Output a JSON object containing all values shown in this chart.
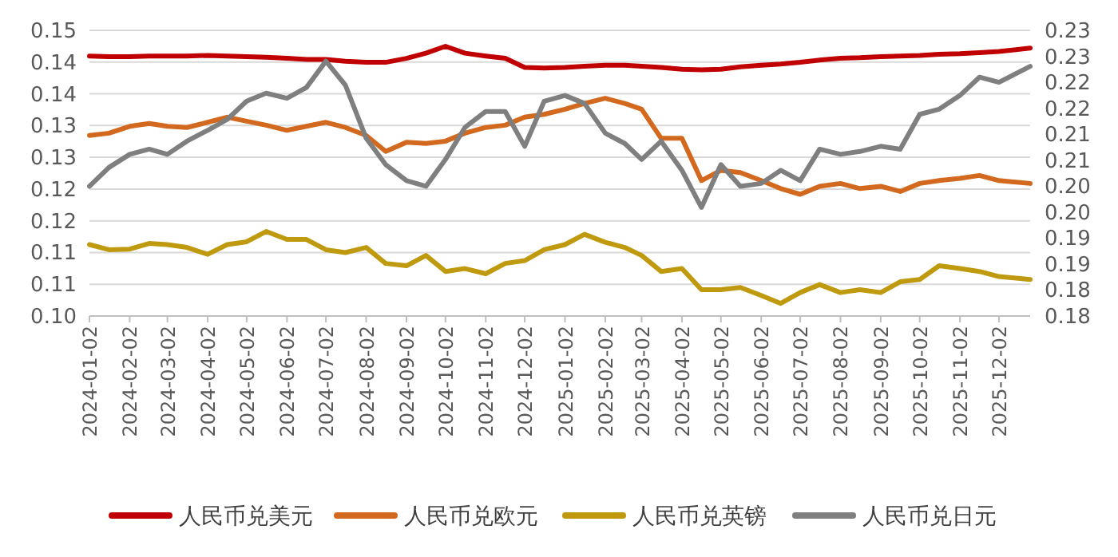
{
  "chart_data": {
    "type": "line",
    "x": [
      "2024-01-02",
      "2024-01-17",
      "2024-02-02",
      "2024-02-17",
      "2024-03-02",
      "2024-03-17",
      "2024-04-02",
      "2024-04-17",
      "2024-05-02",
      "2024-05-17",
      "2024-06-02",
      "2024-06-17",
      "2024-07-02",
      "2024-07-17",
      "2024-08-02",
      "2024-08-17",
      "2024-09-02",
      "2024-09-17",
      "2024-10-02",
      "2024-10-17",
      "2024-11-02",
      "2024-11-17",
      "2024-12-02",
      "2024-12-17",
      "2025-01-02",
      "2025-01-17",
      "2025-02-02",
      "2025-02-17",
      "2025-03-02",
      "2025-03-17",
      "2025-04-02",
      "2025-04-17",
      "2025-05-02",
      "2025-05-17",
      "2025-06-02",
      "2025-06-17",
      "2025-07-02",
      "2025-07-17",
      "2025-08-02",
      "2025-08-17",
      "2025-09-02",
      "2025-09-17",
      "2025-10-02",
      "2025-10-17",
      "2025-11-02",
      "2025-11-17",
      "2025-12-02",
      "2025-12-26"
    ],
    "series": [
      {
        "name": "人民币兑美元",
        "color": "#c00000",
        "values": [
          0.1455,
          0.1454,
          0.1454,
          0.1455,
          0.1455,
          0.1455,
          0.1456,
          0.1455,
          0.1454,
          0.1453,
          0.1451,
          0.1449,
          0.1449,
          0.1446,
          0.1444,
          0.1444,
          0.1451,
          0.146,
          0.1472,
          0.146,
          0.1455,
          0.1451,
          0.1435,
          0.1434,
          0.1435,
          0.1437,
          0.1439,
          0.1439,
          0.1437,
          0.1435,
          0.1432,
          0.1431,
          0.1432,
          0.1436,
          0.1439,
          0.1441,
          0.1444,
          0.1448,
          0.1451,
          0.1452,
          0.1454,
          0.1455,
          0.1456,
          0.1458,
          0.1459,
          0.1461,
          0.1463,
          0.1469
        ]
      },
      {
        "name": "人民币兑欧元",
        "color": "#d2691e",
        "values": [
          0.1316,
          0.132,
          0.1332,
          0.1337,
          0.1332,
          0.133,
          0.1339,
          0.1348,
          0.1341,
          0.1334,
          0.1325,
          0.1332,
          0.1339,
          0.133,
          0.1316,
          0.1288,
          0.1304,
          0.1302,
          0.1306,
          0.132,
          0.133,
          0.1334,
          0.1348,
          0.1353,
          0.1362,
          0.1372,
          0.1381,
          0.1372,
          0.1362,
          0.1311,
          0.1311,
          0.1237,
          0.1255,
          0.1251,
          0.1237,
          0.1223,
          0.1213,
          0.1227,
          0.1232,
          0.1223,
          0.1227,
          0.1218,
          0.1232,
          0.1237,
          0.1241,
          0.1246,
          0.1237,
          0.1232
        ]
      },
      {
        "name": "人民币兑英镑",
        "color": "#c09a0e",
        "values": [
          0.1125,
          0.1116,
          0.1117,
          0.1127,
          0.1125,
          0.112,
          0.1108,
          0.1125,
          0.113,
          0.1148,
          0.1134,
          0.1134,
          0.1116,
          0.1111,
          0.112,
          0.1092,
          0.1088,
          0.1106,
          0.1078,
          0.1083,
          0.1074,
          0.1092,
          0.1097,
          0.1116,
          0.1125,
          0.1143,
          0.1129,
          0.112,
          0.1106,
          0.1078,
          0.1083,
          0.1046,
          0.1046,
          0.105,
          0.1036,
          0.1022,
          0.1041,
          0.1055,
          0.1041,
          0.1046,
          0.1041,
          0.106,
          0.1064,
          0.1088,
          0.1083,
          0.1078,
          0.1069,
          0.1064
        ]
      },
      {
        "name": "人民币兑日元",
        "color": "#7f7f7f",
        "axis": "y2",
        "values": [
          0.2027,
          0.206,
          0.2083,
          0.2092,
          0.2083,
          0.2106,
          0.2125,
          0.2144,
          0.2176,
          0.219,
          0.2181,
          0.22,
          0.2246,
          0.2204,
          0.2111,
          0.2065,
          0.2037,
          0.2027,
          0.2074,
          0.213,
          0.2158,
          0.2158,
          0.2097,
          0.2176,
          0.2186,
          0.2172,
          0.212,
          0.2102,
          0.2074,
          0.2106,
          0.2055,
          0.199,
          0.2065,
          0.2027,
          0.2032,
          0.2055,
          0.2037,
          0.2092,
          0.2083,
          0.2088,
          0.2097,
          0.2092,
          0.2153,
          0.2162,
          0.2186,
          0.2218,
          0.2209,
          0.2237
        ]
      }
    ],
    "xlim": [
      "2024-01-02",
      "2025-12-26"
    ],
    "xticks": [
      "2024-01-02",
      "2024-02-02",
      "2024-03-02",
      "2024-04-02",
      "2024-05-02",
      "2024-06-02",
      "2024-07-02",
      "2024-08-02",
      "2024-09-02",
      "2024-10-02",
      "2024-11-02",
      "2024-12-02",
      "2025-01-02",
      "2025-02-02",
      "2025-03-02",
      "2025-04-02",
      "2025-05-02",
      "2025-06-02",
      "2025-07-02",
      "2025-08-02",
      "2025-09-02",
      "2025-10-02",
      "2025-11-02",
      "2025-12-02"
    ],
    "ylim": [
      0.1,
      0.15
    ],
    "yticks": [
      {
        "value": 0.1,
        "label": "0.10"
      },
      {
        "value": 0.10556,
        "label": "0.11"
      },
      {
        "value": 0.11111,
        "label": "0.11"
      },
      {
        "value": 0.11667,
        "label": "0.12"
      },
      {
        "value": 0.12222,
        "label": "0.12"
      },
      {
        "value": 0.12778,
        "label": "0.13"
      },
      {
        "value": 0.13333,
        "label": "0.13"
      },
      {
        "value": 0.13889,
        "label": "0.14"
      },
      {
        "value": 0.14444,
        "label": "0.14"
      },
      {
        "value": 0.15,
        "label": "0.15"
      }
    ],
    "y2lim": [
      0.18,
      0.23
    ],
    "y2ticks": [
      {
        "value": 0.18,
        "label": "0.18"
      },
      {
        "value": 0.18455,
        "label": "0.18"
      },
      {
        "value": 0.18909,
        "label": "0.19"
      },
      {
        "value": 0.19364,
        "label": "0.19"
      },
      {
        "value": 0.19818,
        "label": "0.20"
      },
      {
        "value": 0.20273,
        "label": "0.20"
      },
      {
        "value": 0.20727,
        "label": "0.21"
      },
      {
        "value": 0.21182,
        "label": "0.21"
      },
      {
        "value": 0.21636,
        "label": "0.22"
      },
      {
        "value": 0.22091,
        "label": "0.22"
      },
      {
        "value": 0.22545,
        "label": "0.23"
      },
      {
        "value": 0.23,
        "label": "0.23"
      }
    ],
    "grid": "y",
    "legend": "bottom"
  }
}
